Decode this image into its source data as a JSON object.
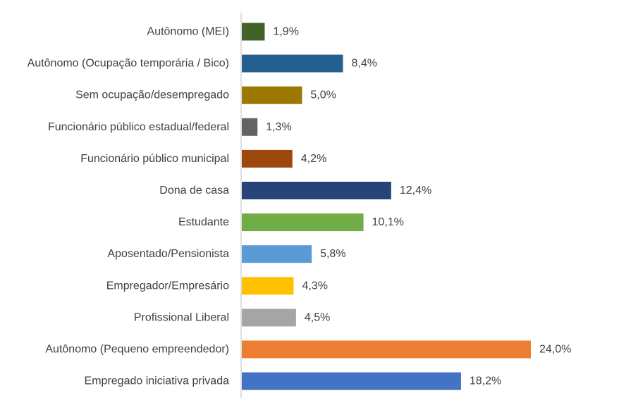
{
  "chart_data": {
    "type": "bar",
    "orientation": "horizontal",
    "title": "",
    "xlabel": "",
    "ylabel": "",
    "grid": false,
    "legend": "none",
    "xlim": [
      0,
      24.0
    ],
    "categories": [
      "Autônomo (MEI)",
      "Autônomo (Ocupação temporária / Bico)",
      "Sem ocupação/desempregado",
      "Funcionário público estadual/federal",
      "Funcionário público municipal",
      "Dona de casa",
      "Estudante",
      "Aposentado/Pensionista",
      "Empregador/Empresário",
      "Profissional Liberal",
      "Autônomo (Pequeno empreendedor)",
      "Empregado iniciativa privada"
    ],
    "values": [
      1.9,
      8.4,
      5.0,
      1.3,
      4.2,
      12.4,
      10.1,
      5.8,
      4.3,
      4.5,
      24.0,
      18.2
    ],
    "value_labels": [
      "1,9%",
      "8,4%",
      "5,0%",
      "1,3%",
      "4,2%",
      "12,4%",
      "10,1%",
      "5,8%",
      "4,3%",
      "4,5%",
      "24,0%",
      "18,2%"
    ],
    "colors": [
      "#3f6328",
      "#255e91",
      "#9c7800",
      "#636363",
      "#9e480e",
      "#264478",
      "#70ad47",
      "#5b9bd5",
      "#ffc000",
      "#a5a5a5",
      "#ed7d31",
      "#4472c4"
    ],
    "axis_color": "#bfbfbf",
    "text_color": "#404040"
  }
}
